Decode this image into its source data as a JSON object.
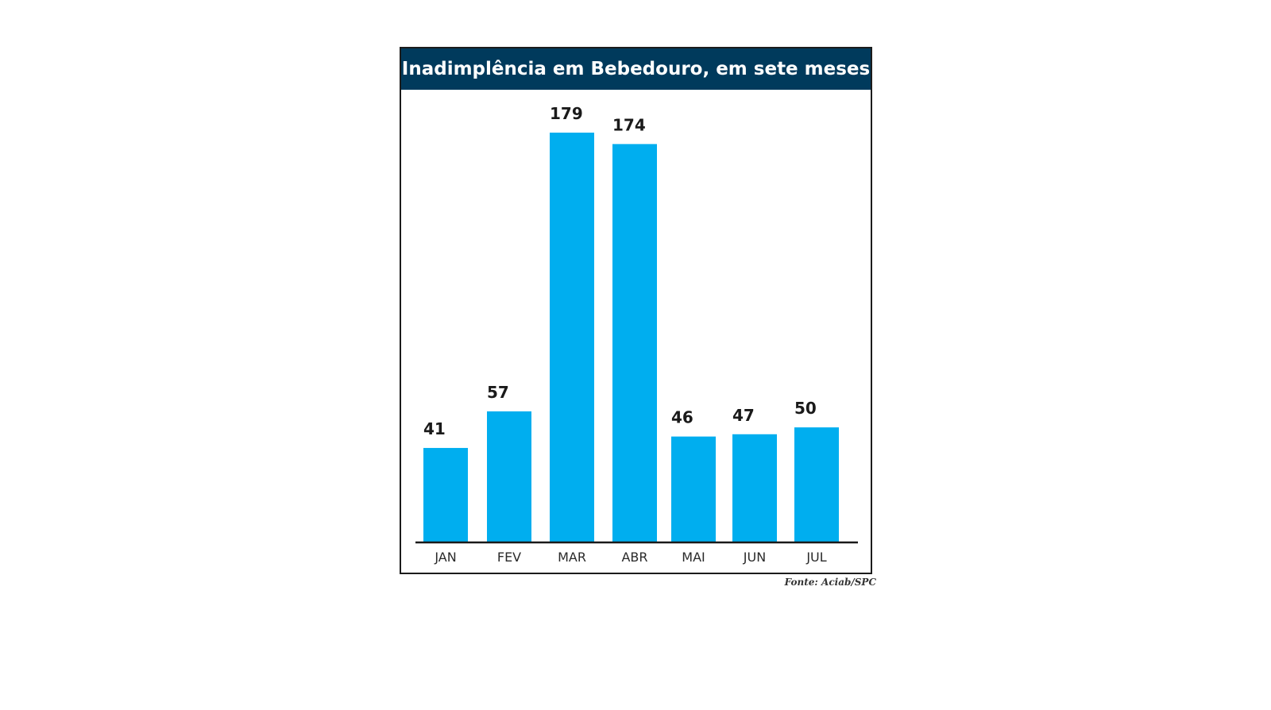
{
  "chart_data": {
    "type": "bar",
    "title": "Inadimplência em Bebedouro, em sete meses",
    "categories": [
      "JAN",
      "FEV",
      "MAR",
      "ABR",
      "MAI",
      "JUN",
      "JUL"
    ],
    "values": [
      41,
      57,
      179,
      174,
      46,
      47,
      50
    ],
    "xlabel": "",
    "ylabel": "",
    "ylim": [
      0,
      179
    ],
    "grid": false,
    "bar_color": "#00aeef",
    "header_color": "#003a5c",
    "source": "Fonte: Aciab/SPC"
  }
}
